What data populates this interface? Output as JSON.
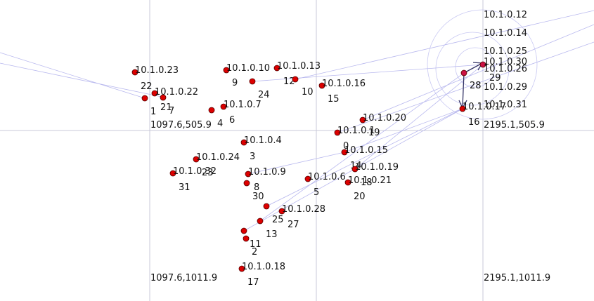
{
  "colors": {
    "node": "#dd0000",
    "node_special": "#cc1144",
    "edge": "#b8b8ee",
    "grid": "#c8c8d8",
    "arrow": "#333366"
  },
  "grid_labels": [
    {
      "id": "tl",
      "text": "1097.6,505.9"
    },
    {
      "id": "tr",
      "text": "2195.1,505.9"
    },
    {
      "id": "bl",
      "text": "1097.6,1011.9"
    },
    {
      "id": "br",
      "text": "2195.1,1011.9"
    }
  ],
  "nodes": [
    {
      "id": "22",
      "ip": "10.1.0.23"
    },
    {
      "id": "1",
      "ip": ""
    },
    {
      "id": "21",
      "ip": "10.1.0.22"
    },
    {
      "id": "7",
      "ip": ""
    },
    {
      "id": "4",
      "ip": ""
    },
    {
      "id": "6",
      "ip": "10.1.0.7"
    },
    {
      "id": "9",
      "ip": "10.1.0.10"
    },
    {
      "id": "24",
      "ip": ""
    },
    {
      "id": "12",
      "ip": "10.1.0.13"
    },
    {
      "id": "10",
      "ip": ""
    },
    {
      "id": "15",
      "ip": "10.1.0.16"
    },
    {
      "id": "19",
      "ip": "10.1.0.20"
    },
    {
      "id": "0",
      "ip": "10.1.0.1"
    },
    {
      "id": "14",
      "ip": "10.1.0.15"
    },
    {
      "id": "18",
      "ip": "10.1.0.19"
    },
    {
      "id": "20",
      "ip": "10.1.0.21"
    },
    {
      "id": "5",
      "ip": "10.1.0.6"
    },
    {
      "id": "3",
      "ip": "10.1.0.4"
    },
    {
      "id": "23",
      "ip": "10.1.0.24"
    },
    {
      "id": "31",
      "ip": "10.1.0.32"
    },
    {
      "id": "8",
      "ip": "10.1.0.9"
    },
    {
      "id": "30",
      "ip": ""
    },
    {
      "id": "25",
      "ip": ""
    },
    {
      "id": "27",
      "ip": "10.1.0.28"
    },
    {
      "id": "13",
      "ip": ""
    },
    {
      "id": "11",
      "ip": ""
    },
    {
      "id": "2",
      "ip": ""
    },
    {
      "id": "17",
      "ip": "10.1.0.18"
    },
    {
      "id": "28",
      "ip": ""
    },
    {
      "id": "29",
      "ip": ""
    },
    {
      "id": "16",
      "ip": "10.1.0.17"
    }
  ],
  "right_labels": [
    "10.1.0.12",
    "10.1.0.14",
    "10.1.0.25",
    "10.1.0.30",
    "10.1.0.26",
    "10.1.0.29",
    "10.1.0.31"
  ]
}
